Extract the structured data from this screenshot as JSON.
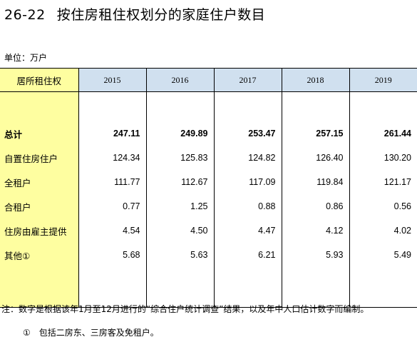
{
  "title": {
    "number": "26-22",
    "text": "按住房租住权划分的家庭住户数目"
  },
  "unit": "单位：万户",
  "table": {
    "corner_label": "居所租住权",
    "years": [
      "2015",
      "2016",
      "2017",
      "2018",
      "2019"
    ],
    "rows": [
      {
        "label": "总计",
        "values": [
          "247.11",
          "249.89",
          "253.47",
          "257.15",
          "261.44"
        ]
      },
      {
        "label": "自置住房住户",
        "values": [
          "124.34",
          "125.83",
          "124.82",
          "126.40",
          "130.20"
        ]
      },
      {
        "label": "全租户",
        "values": [
          "111.77",
          "112.67",
          "117.09",
          "119.84",
          "121.17"
        ]
      },
      {
        "label": "合租户",
        "values": [
          "0.77",
          "1.25",
          "0.88",
          "0.86",
          "0.56"
        ]
      },
      {
        "label": "住房由雇主提供",
        "values": [
          "4.54",
          "4.50",
          "4.47",
          "4.12",
          "4.02"
        ]
      },
      {
        "label": "其他①",
        "values": [
          "5.68",
          "5.63",
          "6.21",
          "5.93",
          "5.49"
        ]
      }
    ]
  },
  "note": "注：数字是根据该年1月至12月进行的“综合住户统计调查”结果，以及年中人口估计数字而编制。",
  "footnote": {
    "mark": "①",
    "text": "包括二房东、三房客及免租户。"
  }
}
